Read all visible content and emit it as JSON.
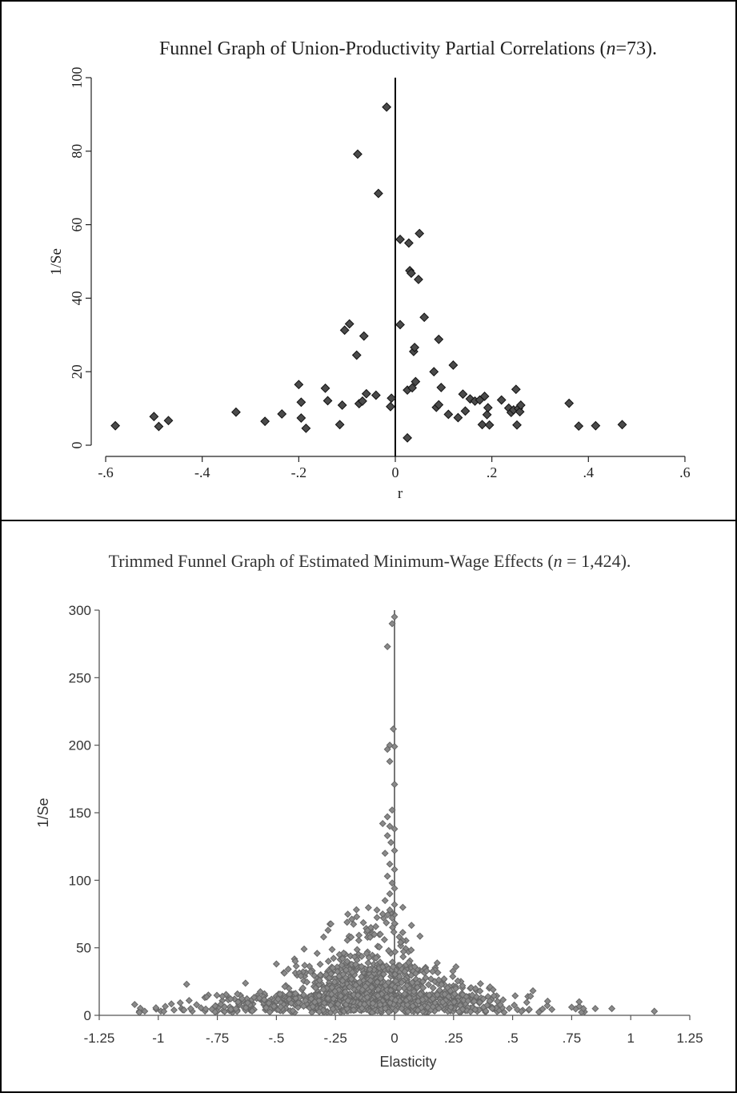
{
  "chart_data": [
    {
      "type": "scatter",
      "title_main": "Funnel Graph of Union-Productivity Partial Correlations (",
      "title_italic": "n",
      "title_tail": "=73).",
      "xlabel": "r",
      "ylabel": "1/Se",
      "xlim": [
        -0.62,
        0.62
      ],
      "ylim": [
        0,
        100
      ],
      "x_ticks": [
        -0.6,
        -0.4,
        -0.2,
        0,
        0.2,
        0.4,
        0.6
      ],
      "x_tick_labels": [
        "-.6",
        "-.4",
        "-.2",
        "0",
        ".2",
        ".4",
        ".6"
      ],
      "y_ticks": [
        0,
        20,
        40,
        60,
        80,
        100
      ],
      "y_tick_labels": [
        "0",
        "20",
        "40",
        "60",
        "80",
        "100"
      ],
      "reference_line_x": 0,
      "marker": "diamond",
      "marker_color": "#4a4a4a",
      "points": [
        [
          -0.58,
          5.3
        ],
        [
          -0.5,
          7.8
        ],
        [
          -0.49,
          5.1
        ],
        [
          -0.47,
          6.7
        ],
        [
          -0.33,
          9.0
        ],
        [
          -0.27,
          6.5
        ],
        [
          -0.235,
          8.5
        ],
        [
          -0.2,
          16.5
        ],
        [
          -0.195,
          11.7
        ],
        [
          -0.195,
          7.4
        ],
        [
          -0.185,
          4.6
        ],
        [
          -0.145,
          15.5
        ],
        [
          -0.14,
          12.1
        ],
        [
          -0.115,
          5.6
        ],
        [
          -0.11,
          10.9
        ],
        [
          -0.105,
          31.3
        ],
        [
          -0.095,
          33.0
        ],
        [
          -0.08,
          24.5
        ],
        [
          -0.078,
          79.2
        ],
        [
          -0.075,
          11.3
        ],
        [
          -0.068,
          12.0
        ],
        [
          -0.065,
          29.7
        ],
        [
          -0.06,
          14.0
        ],
        [
          -0.04,
          13.6
        ],
        [
          -0.035,
          68.5
        ],
        [
          -0.018,
          92.0
        ],
        [
          -0.01,
          10.5
        ],
        [
          -0.008,
          12.8
        ],
        [
          0.01,
          32.8
        ],
        [
          0.01,
          56.0
        ],
        [
          0.025,
          15.0
        ],
        [
          0.025,
          2.0
        ],
        [
          0.028,
          55.0
        ],
        [
          0.03,
          47.5
        ],
        [
          0.033,
          46.8
        ],
        [
          0.035,
          15.6
        ],
        [
          0.038,
          25.5
        ],
        [
          0.04,
          26.6
        ],
        [
          0.042,
          17.3
        ],
        [
          0.048,
          45.1
        ],
        [
          0.05,
          57.6
        ],
        [
          0.06,
          34.8
        ],
        [
          0.08,
          20.0
        ],
        [
          0.085,
          10.3
        ],
        [
          0.09,
          28.8
        ],
        [
          0.09,
          11.0
        ],
        [
          0.095,
          15.7
        ],
        [
          0.11,
          8.4
        ],
        [
          0.12,
          21.8
        ],
        [
          0.13,
          7.5
        ],
        [
          0.14,
          13.9
        ],
        [
          0.145,
          9.3
        ],
        [
          0.155,
          12.6
        ],
        [
          0.165,
          12.0
        ],
        [
          0.175,
          12.3
        ],
        [
          0.18,
          5.6
        ],
        [
          0.185,
          13.3
        ],
        [
          0.19,
          8.3
        ],
        [
          0.192,
          10.2
        ],
        [
          0.195,
          5.5
        ],
        [
          0.22,
          12.3
        ],
        [
          0.235,
          10.1
        ],
        [
          0.24,
          8.9
        ],
        [
          0.245,
          9.6
        ],
        [
          0.25,
          15.2
        ],
        [
          0.252,
          5.5
        ],
        [
          0.255,
          10.0
        ],
        [
          0.258,
          9.1
        ],
        [
          0.26,
          10.9
        ],
        [
          0.36,
          11.4
        ],
        [
          0.38,
          5.2
        ],
        [
          0.415,
          5.3
        ],
        [
          0.47,
          5.6
        ]
      ]
    },
    {
      "type": "scatter",
      "title_main": "Trimmed Funnel Graph of Estimated Minimum-Wage Effects (",
      "title_italic": "n",
      "title_tail": " = 1,424).",
      "xlabel": "Elasticity",
      "ylabel": "1/Se",
      "xlim": [
        -1.25,
        1.25
      ],
      "ylim": [
        0,
        300
      ],
      "x_ticks": [
        -1.25,
        -1,
        -0.75,
        -0.5,
        -0.25,
        0,
        0.25,
        0.5,
        0.75,
        1,
        1.25
      ],
      "x_tick_labels": [
        "-1.25",
        "-1",
        "-.75",
        "-.5",
        "-.25",
        "0",
        ".25",
        ".5",
        ".75",
        "1",
        "1.25"
      ],
      "y_ticks": [
        0,
        50,
        100,
        150,
        200,
        250,
        300
      ],
      "y_tick_labels": [
        "0",
        "50",
        "100",
        "150",
        "200",
        "250",
        "300"
      ],
      "reference_line_x": 0,
      "marker": "diamond",
      "marker_color": "#8a8a8a",
      "n_points": 1424,
      "points": [
        [
          0.0,
          295
        ],
        [
          -0.01,
          290
        ],
        [
          -0.03,
          273
        ],
        [
          -0.005,
          212
        ],
        [
          -0.02,
          200
        ],
        [
          0.0,
          199
        ],
        [
          -0.03,
          197
        ],
        [
          -0.02,
          188
        ],
        [
          0.0,
          171
        ],
        [
          -0.01,
          152
        ],
        [
          -0.03,
          147
        ],
        [
          -0.05,
          142
        ],
        [
          -0.02,
          140
        ],
        [
          0.0,
          138
        ],
        [
          -0.03,
          133
        ],
        [
          -0.015,
          128
        ],
        [
          0.0,
          122
        ],
        [
          -0.04,
          120
        ],
        [
          -0.02,
          112
        ],
        [
          0.0,
          108
        ],
        [
          -0.03,
          103
        ],
        [
          -0.01,
          98
        ],
        [
          0.0,
          94
        ],
        [
          -0.02,
          90
        ],
        [
          -0.04,
          85
        ],
        [
          0.0,
          82
        ],
        [
          -0.02,
          78
        ],
        [
          -0.05,
          75
        ],
        [
          -0.01,
          72
        ],
        [
          0.0,
          68
        ],
        [
          -0.16,
          73
        ],
        [
          -0.3,
          58
        ],
        [
          -0.1,
          65
        ],
        [
          -0.06,
          60
        ],
        [
          0.02,
          58
        ],
        [
          -1.1,
          8
        ],
        [
          -0.88,
          23
        ],
        [
          -0.5,
          38
        ],
        [
          -0.42,
          40
        ],
        [
          -0.38,
          37
        ],
        [
          -0.28,
          40
        ],
        [
          -0.22,
          42
        ],
        [
          0.06,
          39
        ],
        [
          0.09,
          31
        ],
        [
          0.12,
          25
        ],
        [
          1.1,
          3
        ],
        [
          0.92,
          5
        ],
        [
          0.85,
          5
        ],
        [
          0.8,
          5
        ],
        [
          0.75,
          6
        ]
      ]
    }
  ]
}
